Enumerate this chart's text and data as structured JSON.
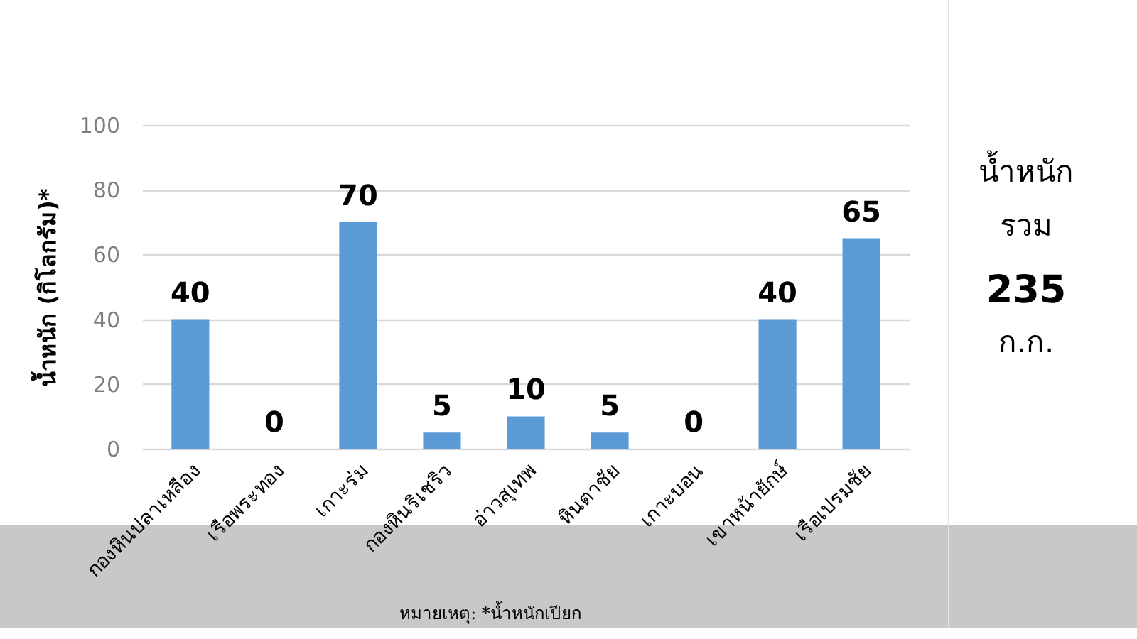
{
  "chart_data": {
    "type": "bar",
    "categories": [
      "กองหินปลาเหลือง",
      "เรือพระทอง",
      "เกาะร่ม",
      "กองหินริเชริว",
      "อ่าวสุเทพ",
      "หินตาชัย",
      "เกาะบอน",
      "เขาหน้ายักษ์",
      "เรือเปรมชัย"
    ],
    "values": [
      40,
      0,
      70,
      5,
      10,
      5,
      0,
      40,
      65
    ],
    "color": "#5b9bd5",
    "ylabel": "น้ำหนัก (กิโลกรัม)*",
    "ylim": [
      0,
      100
    ],
    "yticks": [
      0,
      20,
      40,
      60,
      80,
      100
    ],
    "grid": "y",
    "data_labels": true,
    "annotations": [
      "น้ำหนัก",
      "รวม",
      "235",
      "ก.ก.",
      "หมายเหตุ: *น้ำหนักเปียก"
    ]
  }
}
